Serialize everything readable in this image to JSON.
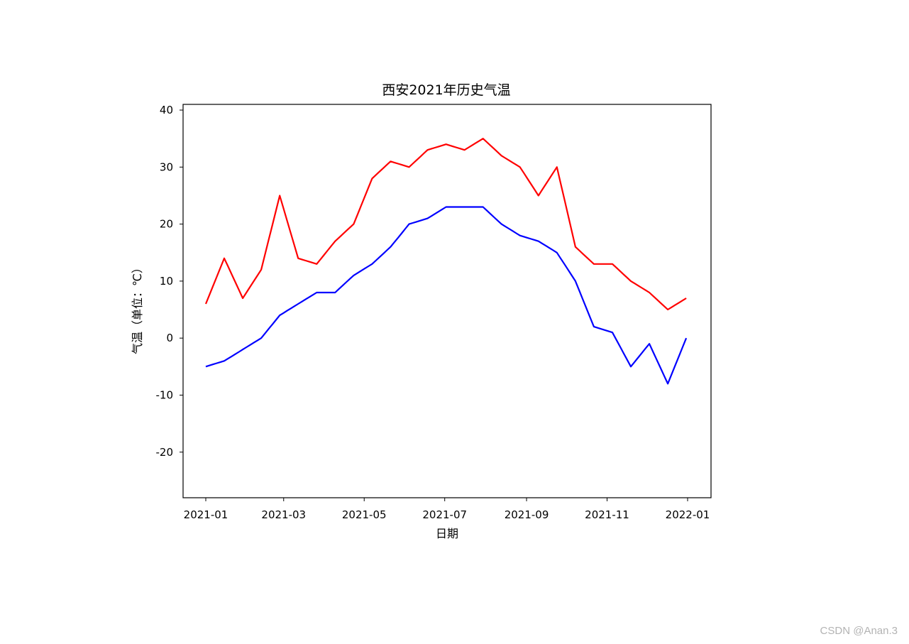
{
  "chart_data": {
    "type": "line",
    "title": "西安2021年历史气温",
    "xlabel": "日期",
    "ylabel": "气温（单位：℃）",
    "xlim": [
      "2021-01-01",
      "2022-01-01"
    ],
    "ylim": [
      -28,
      41
    ],
    "x_ticks": [
      "2021-01",
      "2021-03",
      "2021-05",
      "2021-07",
      "2021-09",
      "2021-11",
      "2022-01"
    ],
    "x_tick_dates": [
      "2021-01-01",
      "2021-03-01",
      "2021-05-01",
      "2021-07-01",
      "2021-09-01",
      "2021-11-01",
      "2022-01-01"
    ],
    "y_ticks": [
      -20,
      -10,
      0,
      10,
      20,
      30,
      40
    ],
    "grid": false,
    "x": [
      "2021-01-01",
      "2021-01-15",
      "2021-01-29",
      "2021-02-12",
      "2021-02-26",
      "2021-03-12",
      "2021-03-26",
      "2021-04-09",
      "2021-04-23",
      "2021-05-07",
      "2021-05-21",
      "2021-06-04",
      "2021-06-18",
      "2021-07-02",
      "2021-07-16",
      "2021-07-30",
      "2021-08-13",
      "2021-08-27",
      "2021-09-10",
      "2021-09-24",
      "2021-10-08",
      "2021-10-22",
      "2021-11-05",
      "2021-11-19",
      "2021-12-03",
      "2021-12-17",
      "2021-12-31"
    ],
    "series": [
      {
        "color": "#ff0000",
        "values": [
          6,
          14,
          7,
          12,
          25,
          14,
          13,
          17,
          20,
          28,
          31,
          30,
          33,
          34,
          33,
          35,
          32,
          30,
          25,
          30,
          16,
          13,
          13,
          10,
          8,
          5,
          7
        ]
      },
      {
        "color": "#0000ff",
        "values": [
          -5,
          -4,
          -2,
          0,
          4,
          6,
          8,
          8,
          11,
          13,
          16,
          20,
          21,
          23,
          23,
          23,
          20,
          18,
          17,
          15,
          10,
          2,
          1,
          -5,
          -1,
          -8,
          0
        ]
      }
    ]
  },
  "watermark": "CSDN @Anan.3"
}
